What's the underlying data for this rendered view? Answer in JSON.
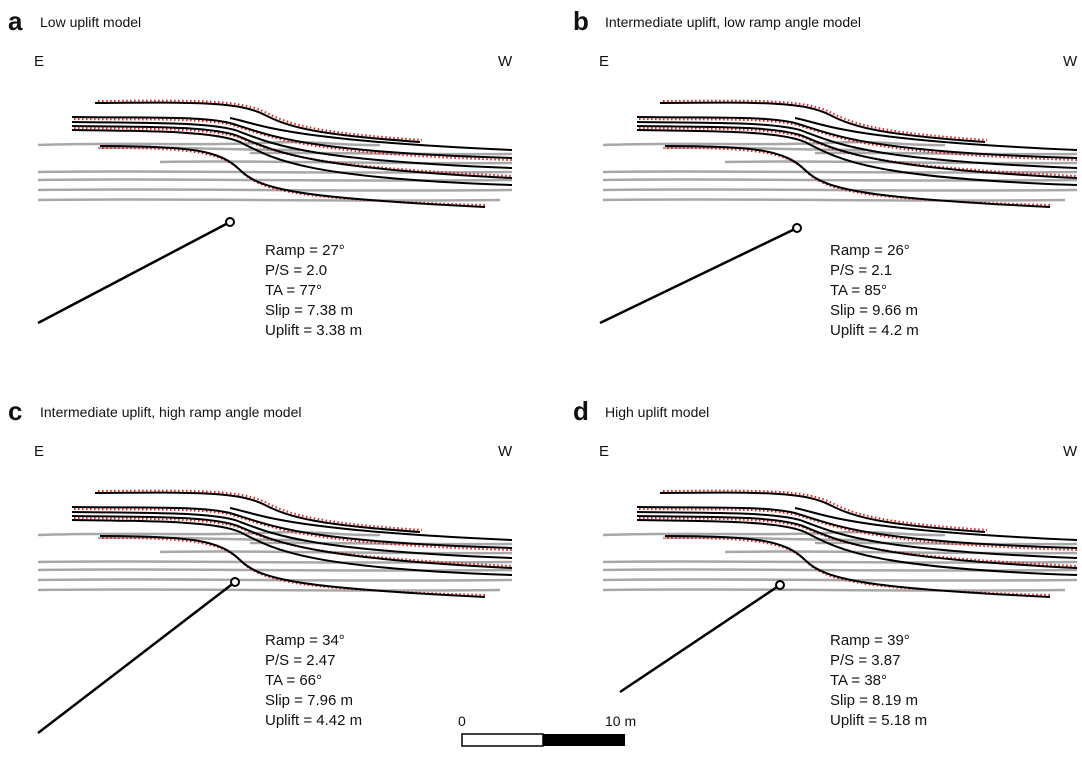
{
  "panels": [
    {
      "letter": "a",
      "title": "Low uplift model",
      "left": "E",
      "right": "W",
      "params": [
        "Ramp = 27°",
        "P/S = 2.0",
        "TA = 77°",
        "Slip = 7.38 m",
        "Uplift = 3.38 m"
      ]
    },
    {
      "letter": "b",
      "title": "Intermediate uplift, low ramp angle model",
      "left": "E",
      "right": "W",
      "params": [
        "Ramp = 26°",
        "P/S = 2.1",
        "TA = 85°",
        "Slip = 9.66 m",
        "Uplift = 4.2 m"
      ]
    },
    {
      "letter": "c",
      "title": "Intermediate uplift, high ramp angle model",
      "left": "E",
      "right": "W",
      "params": [
        "Ramp = 34°",
        "P/S = 2.47",
        "TA = 66°",
        "Slip = 7.96 m",
        "Uplift = 4.42 m"
      ]
    },
    {
      "letter": "d",
      "title": "High uplift model",
      "left": "E",
      "right": "W",
      "params": [
        "Ramp = 39°",
        "P/S = 3.87",
        "TA = 38°",
        "Slip = 8.19 m",
        "Uplift = 5.18 m"
      ]
    }
  ],
  "scale_bar": {
    "start": "0",
    "end": "10 m"
  }
}
